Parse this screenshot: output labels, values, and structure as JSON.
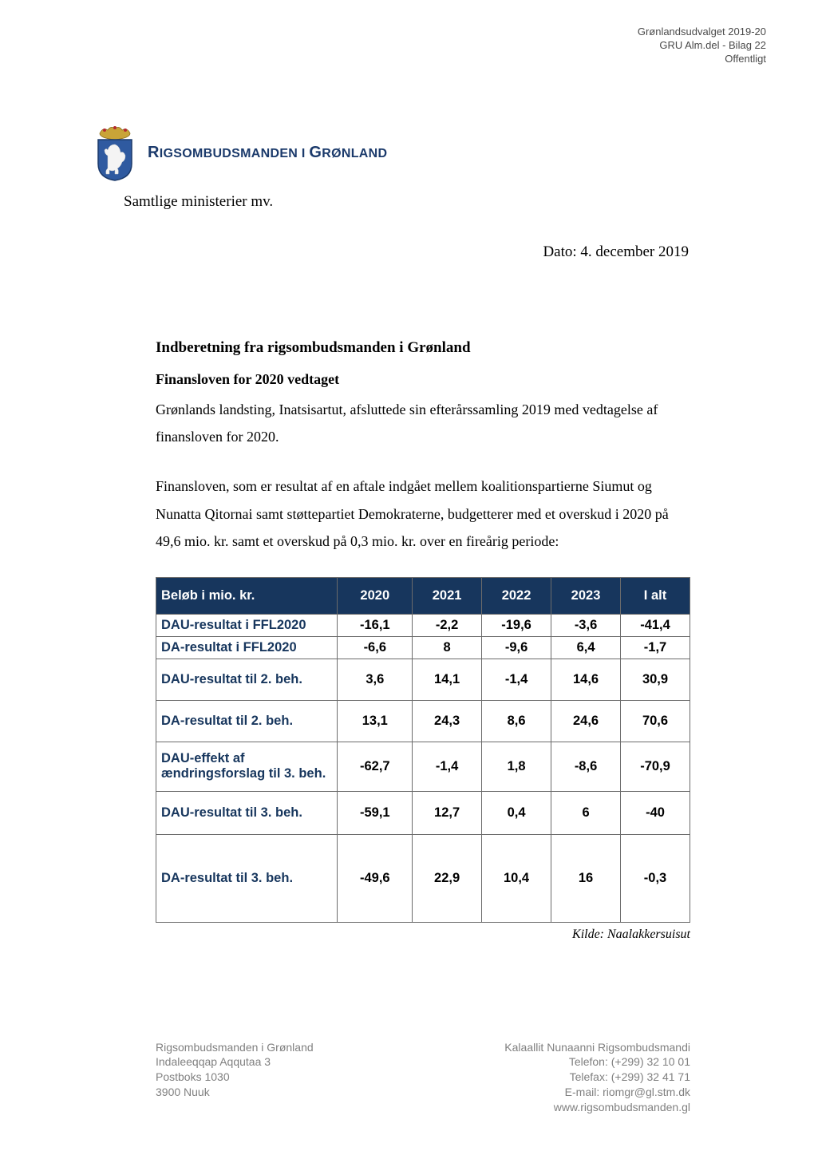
{
  "header_meta": {
    "line1": "Grønlandsudvalget 2019-20",
    "line2": "GRU Alm.del -  Bilag 22",
    "line3": "Offentligt"
  },
  "org_title_parts": {
    "r": "R",
    "igsombudsmanden_i": "IGSOMBUDSMANDEN I ",
    "g": "G",
    "ronland": "RØNLAND"
  },
  "addressee": "Samtlige ministerier mv.",
  "date_line": "Dato: 4. december 2019",
  "section_title": "Indberetning fra rigsombudsmanden i Grønland",
  "subheading": "Finansloven for 2020 vedtaget",
  "para1": "Grønlands landsting, Inatsisartut, afsluttede sin efterårssamling 2019 med vedtagelse af finansloven for 2020.",
  "para2": "Finansloven, som er resultat af en aftale indgået mellem koalitionspartierne Siumut og Nunatta Qitornai samt støttepartiet Demokraterne, budgetterer med et overskud i 2020 på 49,6 mio. kr. samt et overskud på 0,3 mio. kr. over en fireårig periode:",
  "table": {
    "columns": [
      "Beløb i mio. kr.",
      "2020",
      "2021",
      "2022",
      "2023",
      "I alt"
    ],
    "col_widths": [
      "34%",
      "14%",
      "13%",
      "13%",
      "13%",
      "13%"
    ],
    "header_bg": "#17365d",
    "header_fg": "#ffffff",
    "label_color": "#17365d",
    "border_color": "#6b6b6b",
    "rows": [
      {
        "h": "h-small",
        "label": "DAU-resultat i FFL2020",
        "vals": [
          "-16,1",
          "-2,2",
          "-19,6",
          "-3,6",
          "-41,4"
        ]
      },
      {
        "h": "h-small",
        "label": "DA-resultat i FFL2020",
        "vals": [
          "-6,6",
          "8",
          "-9,6",
          "6,4",
          "-1,7"
        ]
      },
      {
        "h": "h-med",
        "label": "DAU-resultat til 2. beh.",
        "vals": [
          "3,6",
          "14,1",
          "-1,4",
          "14,6",
          "30,9"
        ]
      },
      {
        "h": "h-med",
        "label": "DA-resultat til 2. beh.",
        "vals": [
          "13,1",
          "24,3",
          "8,6",
          "24,6",
          "70,6"
        ]
      },
      {
        "h": "h-med2",
        "label": "DAU-effekt af ændringsforslag til 3. beh.",
        "vals": [
          "-62,7",
          "-1,4",
          "1,8",
          "-8,6",
          "-70,9"
        ]
      },
      {
        "h": "h-big",
        "label": "DAU-resultat til 3. beh.",
        "vals": [
          "-59,1",
          "12,7",
          "0,4",
          "6",
          "-40"
        ]
      },
      {
        "h": "h-xl",
        "label": "DA-resultat til 3. beh.",
        "vals": [
          "-49,6",
          "22,9",
          "10,4",
          "16",
          "-0,3"
        ]
      }
    ]
  },
  "source": "Kilde: Naalakkersuisut",
  "footer": {
    "left": {
      "l1": "Rigsombudsmanden i Grønland",
      "l2": "Indaleeqqap Aqqutaa 3",
      "l3": "Postboks 1030",
      "l4": "3900  Nuuk"
    },
    "right": {
      "r1": "Kalaallit Nunaanni Rigsombudsmandi",
      "r2": "Telefon: (+299) 32 10 01",
      "r3": "Telefax: (+299) 32 41 71",
      "r4": "E-mail: riomgr@gl.stm.dk",
      "r5": "www.rigsombudsmanden.gl"
    }
  },
  "crest_colors": {
    "crown_gold": "#c9a437",
    "crown_red": "#b5292f",
    "shield_stroke": "#1b3a6b",
    "shield_fill": "#2f5aa0",
    "bear": "#f4f4f4"
  }
}
